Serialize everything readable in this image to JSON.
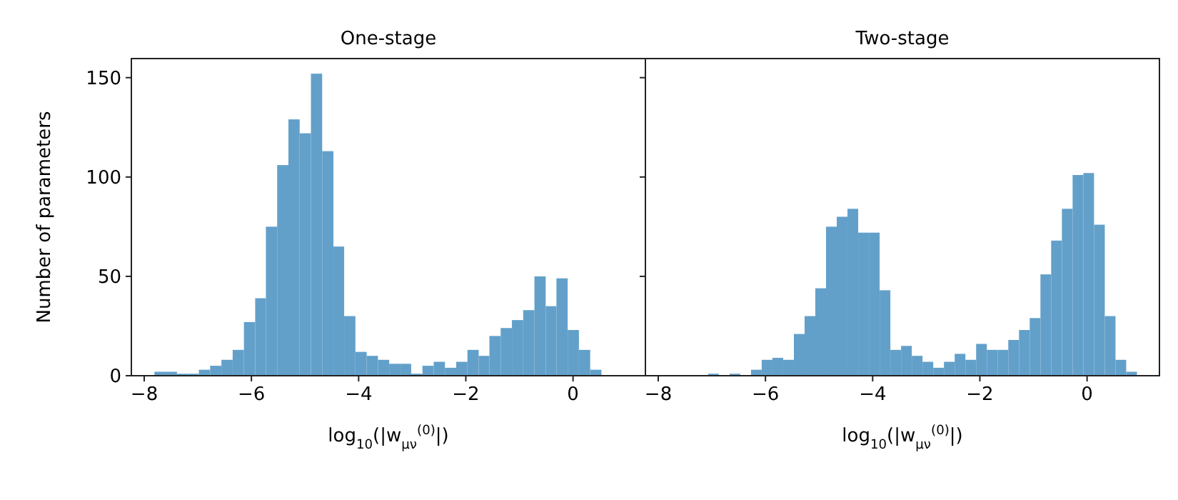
{
  "chart_data": [
    {
      "type": "histogram",
      "title": "One-stage",
      "xlabel": "log$_{10}$(|w$_{μν}$$^{(0)}$|)",
      "ylabel": "Number of parameters",
      "color": "#62a0ca",
      "xlim": [
        -8.24,
        1.35
      ],
      "xticks": [
        {
          "value": -8,
          "label": "−8"
        },
        {
          "value": -6,
          "label": "−6"
        },
        {
          "value": -4,
          "label": "−4"
        },
        {
          "value": -2,
          "label": "−2"
        },
        0
      ],
      "ylim": [
        0,
        159.6
      ],
      "yticks": [
        0,
        50,
        100,
        150
      ],
      "bins": [
        -7.81,
        -7.6,
        -7.39,
        -7.18,
        -6.98,
        -6.77,
        -6.56,
        -6.35,
        -6.14,
        -5.93,
        -5.73,
        -5.52,
        -5.31,
        -5.1,
        -4.89,
        -4.68,
        -4.47,
        -4.27,
        -4.06,
        -3.85,
        -3.64,
        -3.43,
        -3.22,
        -3.02,
        -2.81,
        -2.6,
        -2.39,
        -2.18,
        -1.97,
        -1.76,
        -1.56,
        -1.35,
        -1.14,
        -0.93,
        -0.72,
        -0.51,
        -0.31,
        -0.1,
        0.11,
        0.32,
        0.53
      ],
      "values": [
        2,
        2,
        1,
        1,
        3,
        5,
        8,
        13,
        27,
        39,
        75,
        106,
        129,
        122,
        152,
        113,
        65,
        30,
        12,
        10,
        8,
        6,
        6,
        1,
        5,
        7,
        4,
        7,
        13,
        10,
        20,
        24,
        28,
        33,
        50,
        35,
        49,
        23,
        13,
        3
      ]
    },
    {
      "type": "histogram",
      "title": "Two-stage",
      "xlabel": "log$_{10}$(|w$_{μν}$$^{(0)}$|)",
      "color": "#62a0ca",
      "xlim": [
        -8.24,
        1.35
      ],
      "xticks": [
        {
          "value": -8,
          "label": "−8"
        },
        {
          "value": -6,
          "label": "−6"
        },
        {
          "value": -4,
          "label": "−4"
        },
        {
          "value": -2,
          "label": "−2"
        },
        0
      ],
      "ylim": [
        0,
        159.6
      ],
      "yticks": [
        0,
        50,
        100,
        150
      ],
      "tick_labels": "x",
      "bins": [
        -7.07,
        -6.87,
        -6.67,
        -6.47,
        -6.27,
        -6.07,
        -5.87,
        -5.67,
        -5.47,
        -5.27,
        -5.07,
        -4.87,
        -4.67,
        -4.47,
        -4.27,
        -4.07,
        -3.87,
        -3.67,
        -3.47,
        -3.27,
        -3.07,
        -2.87,
        -2.67,
        -2.47,
        -2.27,
        -2.07,
        -1.87,
        -1.67,
        -1.47,
        -1.27,
        -1.07,
        -0.87,
        -0.67,
        -0.47,
        -0.27,
        -0.07,
        0.13,
        0.33,
        0.53,
        0.73,
        0.93
      ],
      "values": [
        1,
        0,
        1,
        0,
        3,
        8,
        9,
        8,
        21,
        30,
        44,
        75,
        80,
        84,
        72,
        72,
        43,
        13,
        15,
        10,
        7,
        4,
        7,
        11,
        8,
        16,
        13,
        13,
        18,
        23,
        29,
        51,
        68,
        84,
        101,
        102,
        76,
        30,
        8,
        2
      ]
    }
  ]
}
